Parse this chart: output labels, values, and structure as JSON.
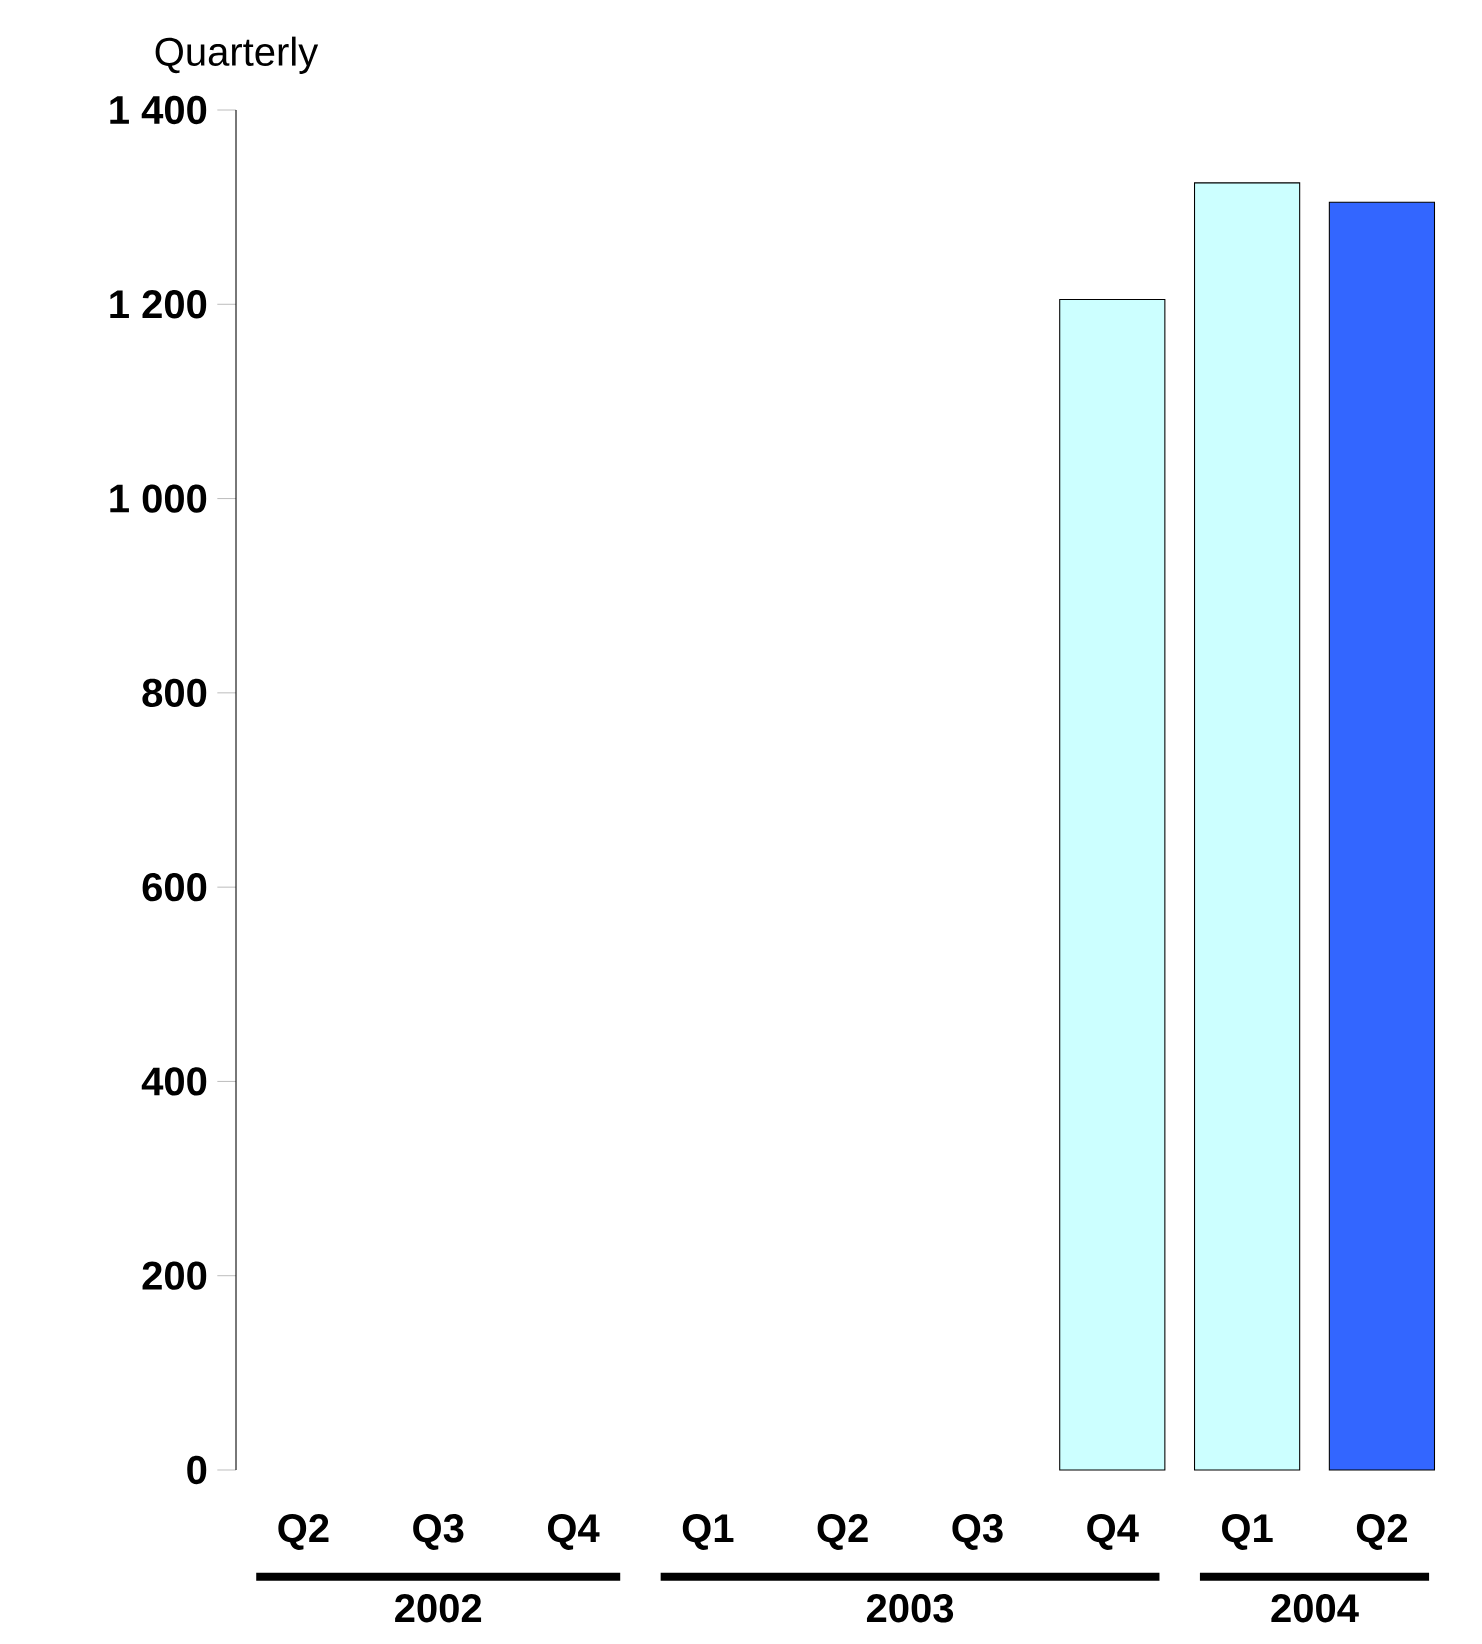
{
  "chart_data": {
    "type": "bar",
    "ylabel": "Quarterly",
    "categories": [
      "Q2",
      "Q3",
      "Q4",
      "Q1",
      "Q2",
      "Q3",
      "Q4",
      "Q1",
      "Q2"
    ],
    "values": [
      null,
      null,
      null,
      null,
      null,
      null,
      1205,
      1325,
      1305
    ],
    "colors": [
      "#ccffff",
      "#ccffff",
      "#ccffff",
      "#ccffff",
      "#ccffff",
      "#ccffff",
      "#ccffff",
      "#ccffff",
      "#3366ff"
    ],
    "ylim": [
      0,
      1400
    ],
    "yticks": [
      0,
      200,
      400,
      600,
      800,
      {
        "value": 1000,
        "label": "1 000"
      },
      {
        "value": 1200,
        "label": "1 200"
      },
      {
        "value": 1400,
        "label": "1 400"
      }
    ],
    "annotations": [
      "2002",
      "2003",
      "2004"
    ]
  }
}
